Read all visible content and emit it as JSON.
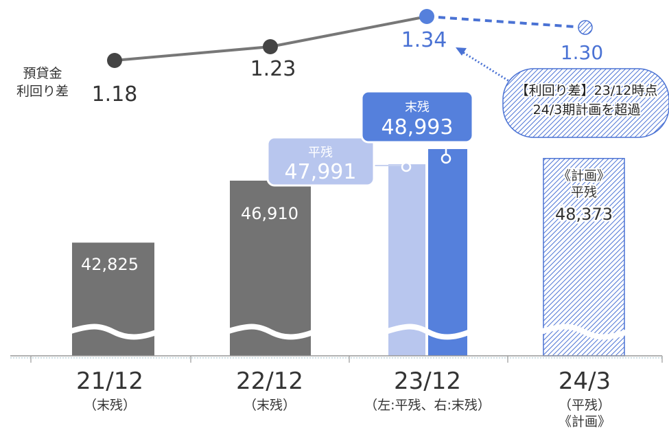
{
  "chart_data": {
    "type": "bar",
    "categories": [
      {
        "label": "21/12",
        "sub": "（末残）"
      },
      {
        "label": "22/12",
        "sub": "（末残）"
      },
      {
        "label": "23/12",
        "sub": "（左:平残、右:末残）"
      },
      {
        "label": "24/3",
        "sub": "（平残）",
        "sub2": "《計画》"
      }
    ],
    "bars": [
      {
        "category": "21/12",
        "kind": "末残",
        "value": 42825,
        "label": "42,825"
      },
      {
        "category": "22/12",
        "kind": "末残",
        "value": 46910,
        "label": "46,910"
      },
      {
        "category": "23/12",
        "kind": "平残",
        "value": 47991,
        "label": "47,991",
        "callout": "平残"
      },
      {
        "category": "23/12",
        "kind": "末残",
        "value": 48993,
        "label": "48,993",
        "callout": "末残"
      },
      {
        "category": "24/3",
        "kind": "計画平残",
        "value": 48373,
        "label": "48,373",
        "label_lines": [
          "《計画》",
          "平残"
        ]
      }
    ],
    "spread_series": {
      "name": "預貸金利回り差",
      "name_lines": [
        "預貸金",
        "利回り差"
      ],
      "points": [
        {
          "category": "21/12",
          "value": 1.18,
          "label": "1.18"
        },
        {
          "category": "22/12",
          "value": 1.23,
          "label": "1.23"
        },
        {
          "category": "23/12",
          "value": 1.34,
          "label": "1.34"
        },
        {
          "category": "24/3",
          "value": 1.3,
          "label": "1.30",
          "plan": true
        }
      ]
    },
    "annotation": {
      "lines": [
        "【利回り差】23/12時点",
        "24/3期計画を超過"
      ]
    },
    "axis_broken": true,
    "grid": false
  },
  "colors": {
    "actual_bar": "#737373",
    "avg_bar": "#b8c6ee",
    "end_bar": "#5580dc",
    "plan_hatch": "#4a72d4",
    "line_actual": "#777777",
    "marker_actual": "#444444",
    "highlight_text": "#4a72d4"
  }
}
